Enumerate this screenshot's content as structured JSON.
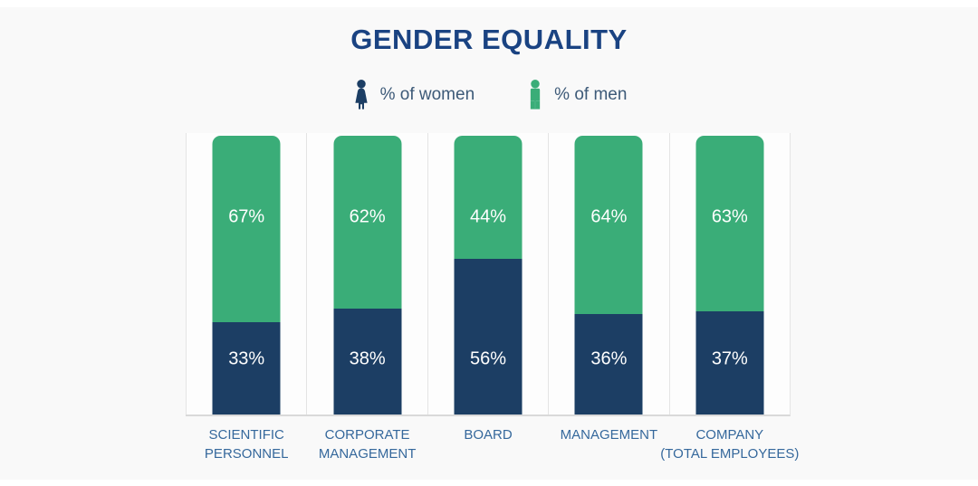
{
  "title": "GENDER EQUALITY",
  "legend": {
    "items": [
      {
        "label": "% of women",
        "icon": "female-icon",
        "color": "#1c3e64"
      },
      {
        "label": "% of men",
        "icon": "male-icon",
        "color": "#3aad78"
      }
    ]
  },
  "chart_data": {
    "type": "bar",
    "stacked": true,
    "orientation": "vertical",
    "title": "GENDER EQUALITY",
    "categories": [
      "SCIENTIFIC\nPERSONNEL",
      "CORPORATE\nMANAGEMENT",
      "BOARD",
      "MANAGEMENT",
      "COMPANY\n(TOTAL EMPLOYEES)"
    ],
    "series": [
      {
        "name": "% of women",
        "color": "#1c3e64",
        "values": [
          33,
          38,
          56,
          36,
          37
        ]
      },
      {
        "name": "% of men",
        "color": "#3aad78",
        "values": [
          67,
          62,
          44,
          64,
          63
        ]
      }
    ],
    "value_suffix": "%",
    "ylim": [
      0,
      100
    ],
    "legend_position": "top",
    "grid": "vertical category separators and baseline"
  },
  "colors": {
    "women": "#1c3e64",
    "men": "#3aad78",
    "title_text": "#1a4382",
    "legend_text": "#3d5a78",
    "category_text": "#35689c",
    "value_text": "#ffffff",
    "gridline": "#e4e4e4",
    "baseline": "#d9d9d9",
    "card_background": "#f9f9f9"
  }
}
